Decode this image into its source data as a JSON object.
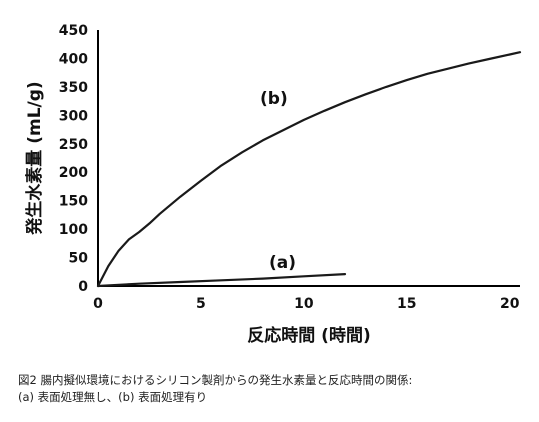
{
  "chart_data": {
    "type": "line",
    "title": "",
    "xlabel": "反応時間 (時間)",
    "ylabel": "発生水素量 (mL/g)",
    "xlim": [
      0,
      20.5
    ],
    "ylim": [
      0,
      450
    ],
    "xticks": [
      0,
      5,
      10,
      15,
      20
    ],
    "yticks": [
      0,
      50,
      100,
      150,
      200,
      250,
      300,
      350,
      400,
      450
    ],
    "grid": false,
    "series": [
      {
        "name": "(a)",
        "x": [
          0,
          2,
          4,
          6,
          8,
          10,
          12
        ],
        "y": [
          0,
          4,
          7,
          10,
          13,
          17,
          21
        ]
      },
      {
        "name": "(b)",
        "x": [
          0,
          0.5,
          1,
          1.5,
          2,
          2.5,
          3,
          4,
          5,
          6,
          7,
          8,
          9,
          10,
          11,
          12,
          13,
          14,
          15,
          16,
          17,
          18,
          19,
          20,
          20.5
        ],
        "y": [
          0,
          35,
          62,
          82,
          95,
          110,
          127,
          157,
          185,
          212,
          235,
          256,
          274,
          292,
          308,
          323,
          337,
          350,
          362,
          373,
          382,
          391,
          399,
          407,
          411
        ]
      }
    ]
  },
  "caption": {
    "line1": "図2 腸内擬似環境におけるシリコン製剤からの発生水素量と反応時間の関係:",
    "line2": "(a) 表面処理無し、(b) 表面処理有り"
  }
}
